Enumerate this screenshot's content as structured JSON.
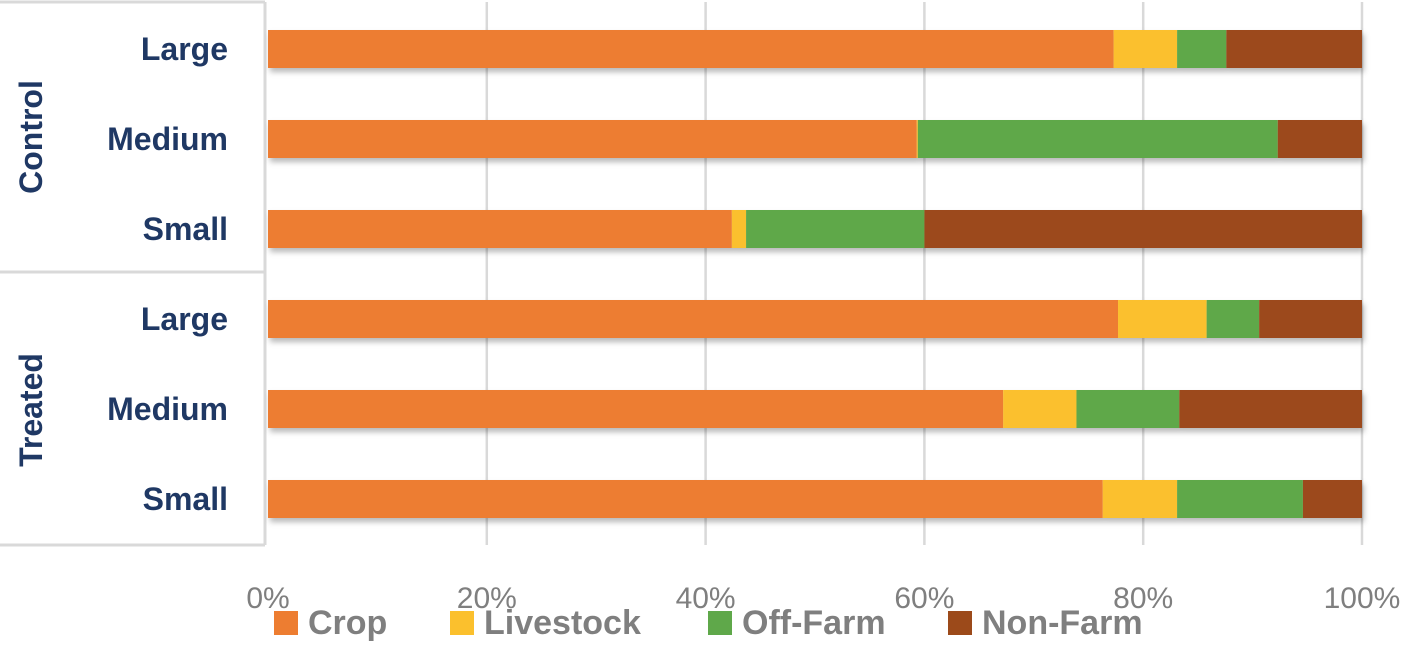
{
  "chart_data": {
    "type": "bar",
    "orientation": "horizontal",
    "stacked": "percent",
    "groups": [
      {
        "name": "Control",
        "categories": [
          "Large",
          "Medium",
          "Small"
        ]
      },
      {
        "name": "Treated",
        "categories": [
          "Large",
          "Medium",
          "Small"
        ]
      }
    ],
    "categories": [
      "Control Large",
      "Control Medium",
      "Control Small",
      "Treated Large",
      "Treated Medium",
      "Treated Small"
    ],
    "series": [
      {
        "name": "Crop",
        "color": "#ed7d31",
        "values": [
          77.3,
          59.3,
          42.4,
          77.7,
          67.2,
          76.3
        ]
      },
      {
        "name": "Livestock",
        "color": "#fbc02d",
        "values": [
          5.8,
          0.1,
          1.3,
          8.1,
          6.7,
          6.8
        ]
      },
      {
        "name": "Off-Farm",
        "color": "#5fa84a",
        "values": [
          4.5,
          32.9,
          16.3,
          4.8,
          9.4,
          11.5
        ]
      },
      {
        "name": "Non-Farm",
        "color": "#9c4a1a",
        "values": [
          12.4,
          7.7,
          40.0,
          9.4,
          16.7,
          5.4
        ]
      }
    ],
    "xlim": [
      0,
      100
    ],
    "xticks": [
      "0%",
      "20%",
      "40%",
      "60%",
      "80%",
      "100%"
    ],
    "grid": true,
    "legend": "bottom"
  }
}
